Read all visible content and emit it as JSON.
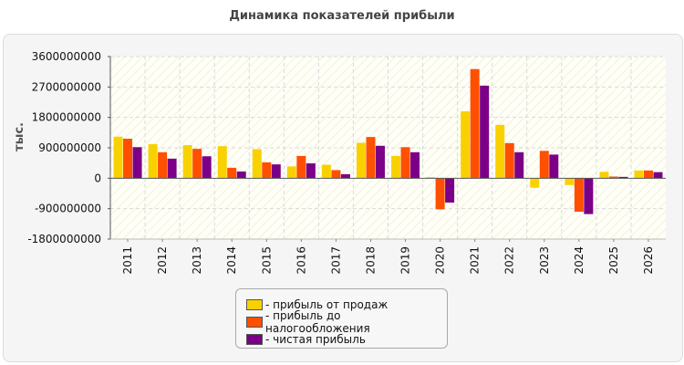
{
  "page": {
    "title": "Динамика показателей прибыли"
  },
  "chart_data": {
    "type": "bar",
    "title": "Динамика показателей прибыли",
    "xlabel": "",
    "ylabel": "тыс.",
    "ylim": [
      -1800000000,
      3600000000
    ],
    "yticks": [
      3600000000,
      2700000000,
      1800000000,
      900000000,
      0,
      -900000000,
      -1800000000
    ],
    "ytick_labels": [
      "3600000000",
      "2700000000",
      "1800000000",
      "900000000",
      "0",
      "-900000000",
      "-1800000000"
    ],
    "grid": true,
    "legend_position": "bottom",
    "categories": [
      "2011",
      "2012",
      "2013",
      "2014",
      "2015",
      "2016",
      "2017",
      "2018",
      "2019",
      "2020",
      "2021",
      "2022",
      "2023",
      "2024",
      "2025",
      "2026"
    ],
    "series": [
      {
        "name": "- прибыль от продаж",
        "color": "#f9d100",
        "values": [
          1230000000,
          1010000000,
          980000000,
          950000000,
          860000000,
          350000000,
          400000000,
          1050000000,
          660000000,
          30000000,
          1980000000,
          1580000000,
          -280000000,
          -200000000,
          190000000,
          230000000
        ]
      },
      {
        "name": "- прибыль до налогообложения",
        "color": "#ff4f00",
        "values": [
          1170000000,
          770000000,
          870000000,
          310000000,
          470000000,
          660000000,
          240000000,
          1220000000,
          920000000,
          -920000000,
          3230000000,
          1040000000,
          810000000,
          -990000000,
          50000000,
          230000000
        ]
      },
      {
        "name": "- чистая прибыль",
        "color": "#7b0087",
        "values": [
          920000000,
          580000000,
          650000000,
          200000000,
          410000000,
          440000000,
          120000000,
          960000000,
          770000000,
          -720000000,
          2740000000,
          770000000,
          700000000,
          -1060000000,
          40000000,
          180000000
        ]
      }
    ]
  }
}
